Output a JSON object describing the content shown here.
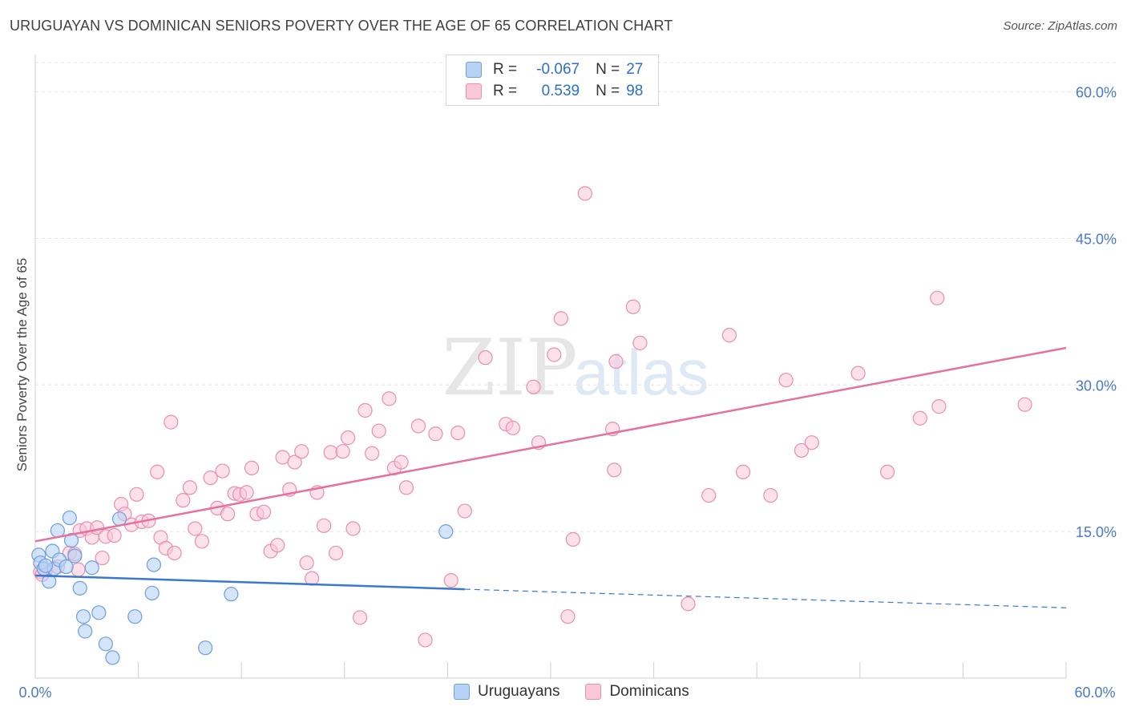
{
  "title": "URUGUAYAN VS DOMINICAN SENIORS POVERTY OVER THE AGE OF 65 CORRELATION CHART",
  "source": "Source: ZipAtlas.com",
  "watermark": {
    "zip": "ZIP",
    "atlas": "atlas"
  },
  "legend": {
    "rows": [
      {
        "r_label": "R =",
        "r_value": "-0.067",
        "n_label": "N =",
        "n_value": "27"
      },
      {
        "r_label": "R =",
        "r_value": "0.539",
        "n_label": "N =",
        "n_value": "98"
      }
    ]
  },
  "colors": {
    "uruguayans_fill": "#b8d2f5",
    "uruguayans_stroke": "#6d9fe0",
    "uruguayans_line": "#3a78d0",
    "dominicans_fill": "#f9c7d8",
    "dominicans_stroke": "#ea8fb0",
    "dominicans_line": "#e5729c",
    "tick": "#4a7ac8",
    "grid": "#e3e3e3"
  },
  "chart_data": {
    "type": "scatter",
    "title": "URUGUAYAN VS DOMINICAN SENIORS POVERTY OVER THE AGE OF 65 CORRELATION CHART",
    "xlabel": "",
    "ylabel": "Seniors Poverty Over the Age of 65",
    "xlim": [
      0,
      60
    ],
    "ylim": [
      0,
      63
    ],
    "x_tick_labels": [
      "0.0%",
      "60.0%"
    ],
    "y_ticks": [
      15,
      30,
      45,
      60
    ],
    "y_tick_labels": [
      "15.0%",
      "30.0%",
      "45.0%",
      "60.0%"
    ],
    "grid": true,
    "legend_position": "top-center",
    "series": [
      {
        "name": "Uruguayans",
        "r": -0.067,
        "n": 27,
        "trend": {
          "x": [
            0,
            25
          ],
          "y": [
            10.5,
            9.1
          ],
          "dashed_to": [
            60,
            7.2
          ]
        },
        "points": [
          [
            0.2,
            12.6
          ],
          [
            0.3,
            11.8
          ],
          [
            0.5,
            11.2
          ],
          [
            0.8,
            9.9
          ],
          [
            1.0,
            13.0
          ],
          [
            1.1,
            11.2
          ],
          [
            1.3,
            15.1
          ],
          [
            1.4,
            12.1
          ],
          [
            1.8,
            11.4
          ],
          [
            2.0,
            16.4
          ],
          [
            2.1,
            14.1
          ],
          [
            2.3,
            12.5
          ],
          [
            2.6,
            9.2
          ],
          [
            2.8,
            6.3
          ],
          [
            2.9,
            4.8
          ],
          [
            3.3,
            11.3
          ],
          [
            3.7,
            6.7
          ],
          [
            4.1,
            3.5
          ],
          [
            4.5,
            2.1
          ],
          [
            4.9,
            16.3
          ],
          [
            5.8,
            6.3
          ],
          [
            6.8,
            8.7
          ],
          [
            6.9,
            11.6
          ],
          [
            9.9,
            3.1
          ],
          [
            11.4,
            8.6
          ],
          [
            23.9,
            15.0
          ],
          [
            0.6,
            11.5
          ]
        ]
      },
      {
        "name": "Dominicans",
        "r": 0.539,
        "n": 98,
        "trend": {
          "x": [
            0,
            60
          ],
          "y": [
            14.0,
            33.8
          ]
        },
        "points": [
          [
            0.3,
            10.9
          ],
          [
            0.6,
            11.1
          ],
          [
            1.3,
            11.4
          ],
          [
            2.0,
            12.8
          ],
          [
            2.3,
            12.7
          ],
          [
            2.5,
            11.1
          ],
          [
            2.6,
            15.1
          ],
          [
            3.0,
            15.3
          ],
          [
            3.3,
            14.4
          ],
          [
            3.6,
            15.4
          ],
          [
            3.9,
            12.3
          ],
          [
            4.1,
            14.5
          ],
          [
            4.6,
            14.6
          ],
          [
            5.0,
            17.8
          ],
          [
            5.2,
            16.8
          ],
          [
            5.6,
            15.7
          ],
          [
            5.9,
            18.8
          ],
          [
            6.2,
            16.0
          ],
          [
            6.6,
            16.1
          ],
          [
            7.1,
            21.1
          ],
          [
            7.3,
            14.4
          ],
          [
            7.6,
            13.3
          ],
          [
            7.9,
            26.2
          ],
          [
            8.1,
            12.8
          ],
          [
            8.6,
            18.2
          ],
          [
            9.0,
            19.5
          ],
          [
            9.3,
            15.3
          ],
          [
            9.7,
            14.0
          ],
          [
            10.2,
            20.5
          ],
          [
            10.6,
            17.4
          ],
          [
            10.9,
            21.2
          ],
          [
            11.2,
            16.8
          ],
          [
            11.6,
            18.9
          ],
          [
            11.9,
            18.8
          ],
          [
            12.3,
            19.0
          ],
          [
            12.6,
            21.5
          ],
          [
            12.9,
            16.8
          ],
          [
            13.3,
            17.0
          ],
          [
            13.7,
            13.0
          ],
          [
            14.1,
            13.6
          ],
          [
            14.4,
            22.6
          ],
          [
            14.8,
            19.3
          ],
          [
            15.1,
            22.1
          ],
          [
            15.5,
            23.2
          ],
          [
            15.8,
            11.8
          ],
          [
            16.1,
            10.2
          ],
          [
            16.4,
            19.0
          ],
          [
            16.8,
            15.6
          ],
          [
            17.2,
            23.1
          ],
          [
            17.5,
            12.8
          ],
          [
            17.9,
            23.2
          ],
          [
            18.2,
            24.6
          ],
          [
            18.5,
            15.3
          ],
          [
            18.9,
            6.2
          ],
          [
            19.2,
            27.4
          ],
          [
            19.6,
            23.0
          ],
          [
            20.0,
            25.3
          ],
          [
            20.6,
            28.6
          ],
          [
            20.9,
            21.5
          ],
          [
            21.3,
            22.1
          ],
          [
            21.6,
            19.5
          ],
          [
            22.3,
            25.8
          ],
          [
            22.7,
            3.9
          ],
          [
            23.3,
            25.0
          ],
          [
            24.2,
            10.0
          ],
          [
            24.6,
            25.1
          ],
          [
            25.0,
            17.1
          ],
          [
            26.2,
            32.8
          ],
          [
            27.4,
            26.0
          ],
          [
            27.8,
            25.6
          ],
          [
            28.2,
            61.0
          ],
          [
            29.0,
            29.8
          ],
          [
            29.3,
            24.1
          ],
          [
            30.2,
            33.1
          ],
          [
            30.6,
            36.8
          ],
          [
            31.0,
            6.3
          ],
          [
            31.3,
            14.2
          ],
          [
            32.0,
            49.6
          ],
          [
            33.6,
            25.5
          ],
          [
            33.7,
            21.3
          ],
          [
            33.8,
            32.4
          ],
          [
            34.8,
            38.0
          ],
          [
            35.2,
            34.3
          ],
          [
            38.0,
            7.6
          ],
          [
            39.2,
            18.7
          ],
          [
            40.4,
            35.1
          ],
          [
            41.2,
            21.1
          ],
          [
            42.8,
            18.7
          ],
          [
            43.7,
            30.5
          ],
          [
            44.6,
            23.3
          ],
          [
            45.2,
            24.1
          ],
          [
            47.9,
            31.2
          ],
          [
            49.6,
            21.1
          ],
          [
            51.5,
            26.6
          ],
          [
            52.5,
            38.9
          ],
          [
            52.6,
            27.8
          ],
          [
            57.6,
            28.0
          ],
          [
            0.4,
            10.6
          ]
        ]
      }
    ]
  },
  "bottom_legend": {
    "items": [
      "Uruguayans",
      "Dominicans"
    ]
  }
}
